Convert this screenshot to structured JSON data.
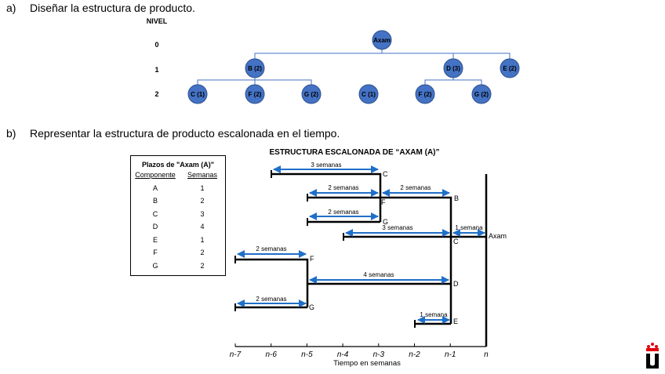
{
  "section_a": {
    "letter": "a)",
    "title": "Diseñar la estructura de producto."
  },
  "section_b": {
    "letter": "b)",
    "title": "Representar la estructura de producto escalonada en el tiempo."
  },
  "tree": {
    "level_header": "NIVEL",
    "levels": [
      "0",
      "1",
      "2"
    ],
    "root": "Axam",
    "level1": [
      "B (2)",
      "D (3)",
      "E (2)"
    ],
    "level2": [
      "C (1)",
      "F (2)",
      "G (2)",
      "C (1)",
      "F (2)",
      "G (2)"
    ],
    "node_color": "#4472c4"
  },
  "table": {
    "title": "Plazos de \"Axam (A)\"",
    "headers": [
      "Componente",
      "Semanas"
    ],
    "rows": [
      [
        "A",
        "1"
      ],
      [
        "B",
        "2"
      ],
      [
        "C",
        "3"
      ],
      [
        "D",
        "4"
      ],
      [
        "E",
        "1"
      ],
      [
        "F",
        "2"
      ],
      [
        "G",
        "2"
      ]
    ]
  },
  "timeline": {
    "title": "ESTRUCTURA ESCALONADA DE “AXAM (A)”",
    "xlabel": "Tiempo en semanas",
    "ticks": [
      "n-7",
      "n-6",
      "n-5",
      "n-4",
      "n-3",
      "n-2",
      "n-1",
      "n"
    ],
    "labels": {
      "c_top": "C",
      "f_mid": "F",
      "b": "B",
      "g_top": "G",
      "axam": "Axam",
      "c_axam": "C",
      "f_low": "F",
      "d": "D",
      "g_low": "G",
      "e": "E"
    },
    "durations": {
      "c_top": "3 semanas",
      "f_mid": "2 semanas",
      "b": "2 semanas",
      "g_top": "2 semanas",
      "c_axam": "3 semanas",
      "axam": "1 semana",
      "f_low": "2 semanas",
      "d": "4 semanas",
      "g_low": "2 semanas",
      "e": "1 semana"
    },
    "arrow_color": "#1f6fc8"
  }
}
